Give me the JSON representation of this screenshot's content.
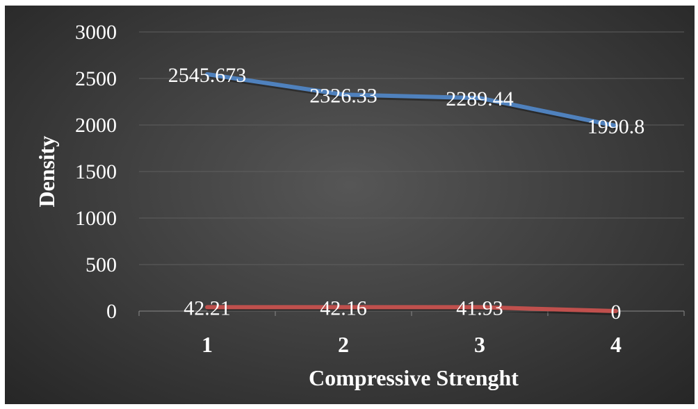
{
  "chart_data": {
    "type": "line",
    "categories": [
      "1",
      "2",
      "3",
      "4"
    ],
    "series": [
      {
        "values": [
          2545.673,
          2326.33,
          2289.44,
          1990.8
        ],
        "color": "#4f81bd",
        "labels": [
          "2545.673",
          "2326.33",
          "2289.44",
          "1990.8"
        ]
      },
      {
        "values": [
          42.21,
          42.16,
          41.93,
          0
        ],
        "color": "#c0504d",
        "labels": [
          "42.21",
          "42.16",
          "41.93",
          "0"
        ]
      }
    ],
    "xlabel": "Compressive Strenght",
    "ylabel": "Density",
    "ylim": [
      0,
      3000
    ],
    "yticks": [
      "0",
      "500",
      "1000",
      "1500",
      "2000",
      "2500",
      "3000"
    ],
    "grid": true,
    "background": "#404040"
  }
}
